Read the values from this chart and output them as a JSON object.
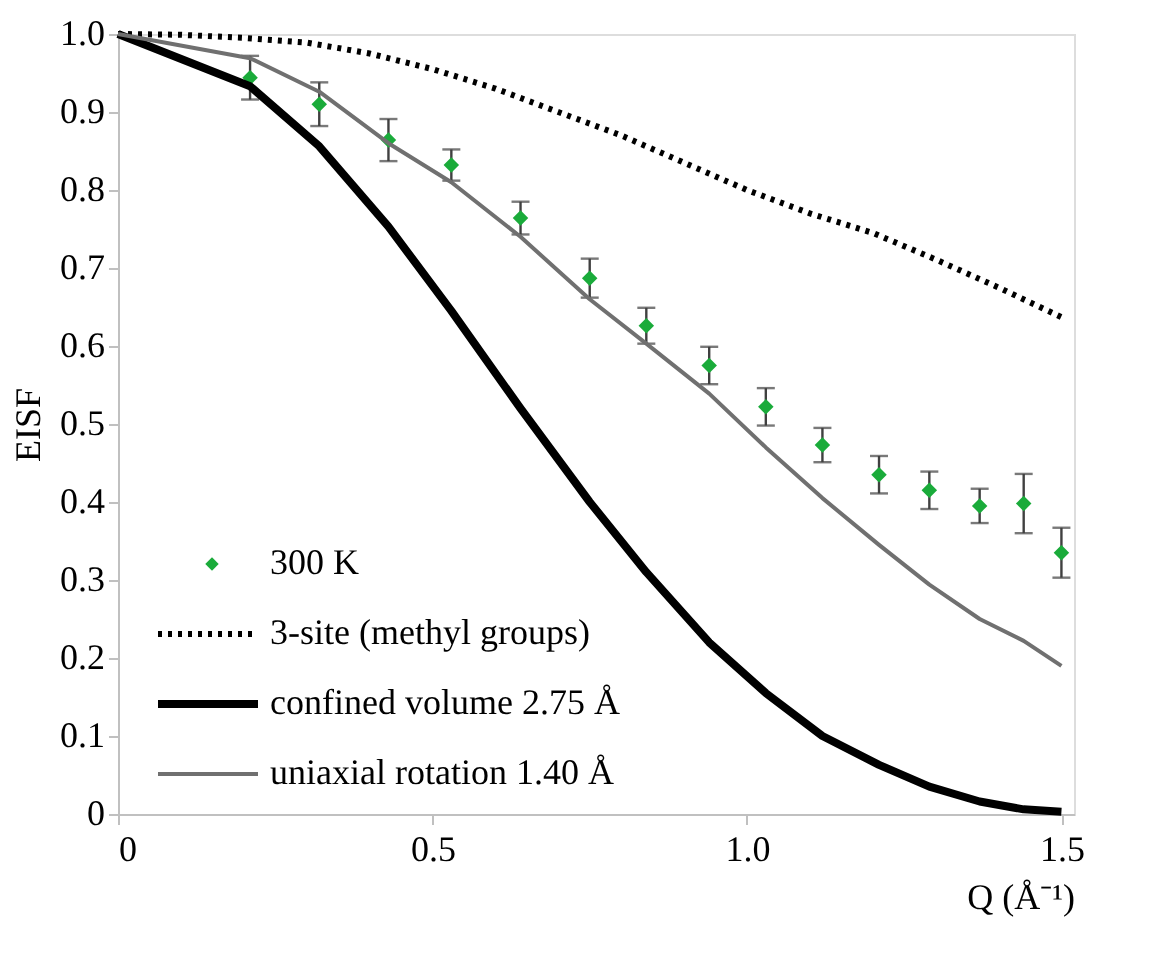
{
  "chart_data": {
    "type": "line",
    "xlabel": "Q (Å⁻¹)",
    "ylabel": "EISF",
    "xlim": [
      0,
      1.52
    ],
    "xticks": [
      0,
      0.5,
      {
        "value": 1.0,
        "label": "1.0"
      },
      1.5
    ],
    "ylim": [
      0,
      1.0
    ],
    "yticks": [
      0,
      0.1,
      0.2,
      0.3,
      0.4,
      0.5,
      0.6,
      0.7,
      0.8,
      0.9,
      {
        "value": 1.0,
        "label": "1.0"
      }
    ],
    "grid": false,
    "legend": "bottom left",
    "series": [
      {
        "name": "300 K",
        "type": "scatter",
        "marker": "diamond",
        "color": "#1aab3a",
        "x": [
          0.21,
          0.32,
          0.43,
          0.53,
          0.64,
          0.75,
          0.84,
          0.94,
          1.03,
          1.12,
          1.21,
          1.29,
          1.37,
          1.44,
          1.5
        ],
        "values": [
          0.944,
          0.91,
          0.864,
          0.832,
          0.764,
          0.687,
          0.626,
          0.575,
          0.522,
          0.473,
          0.435,
          0.415,
          0.395,
          0.398,
          0.335
        ],
        "errors": [
          0.028,
          0.028,
          0.027,
          0.02,
          0.021,
          0.025,
          0.023,
          0.024,
          0.024,
          0.022,
          0.024,
          0.024,
          0.022,
          0.038,
          0.032
        ]
      },
      {
        "name": "3-site (methyl groups)",
        "type": "line",
        "line_style": "dotted",
        "color": "#000000",
        "x": [
          0,
          0.1,
          0.2,
          0.3,
          0.4,
          0.5,
          0.6,
          0.7,
          0.8,
          0.9,
          1.0,
          1.1,
          1.2,
          1.3,
          1.4,
          1.5
        ],
        "values": [
          1.0,
          0.999,
          0.995,
          0.989,
          0.975,
          0.955,
          0.93,
          0.9,
          0.87,
          0.835,
          0.8,
          0.77,
          0.745,
          0.711,
          0.675,
          0.637
        ]
      },
      {
        "name": "confined volume 2.75 Å",
        "type": "line",
        "line_style": "solid",
        "color": "#000000",
        "x": [
          0,
          0.21,
          0.32,
          0.43,
          0.53,
          0.64,
          0.75,
          0.84,
          0.94,
          1.03,
          1.12,
          1.21,
          1.29,
          1.37,
          1.44,
          1.5
        ],
        "values": [
          1.0,
          0.933,
          0.856,
          0.753,
          0.645,
          0.52,
          0.4,
          0.31,
          0.22,
          0.155,
          0.1,
          0.063,
          0.035,
          0.016,
          0.006,
          0.003
        ]
      },
      {
        "name": "uniaxial rotation 1.40 Å",
        "type": "line",
        "line_style": "solid",
        "color": "#707070",
        "x": [
          0,
          0.21,
          0.32,
          0.43,
          0.53,
          0.64,
          0.75,
          0.84,
          0.94,
          1.03,
          1.12,
          1.21,
          1.29,
          1.37,
          1.44,
          1.5
        ],
        "values": [
          1.0,
          0.969,
          0.926,
          0.86,
          0.81,
          0.74,
          0.66,
          0.603,
          0.539,
          0.47,
          0.405,
          0.345,
          0.294,
          0.25,
          0.222,
          0.19
        ]
      }
    ]
  }
}
